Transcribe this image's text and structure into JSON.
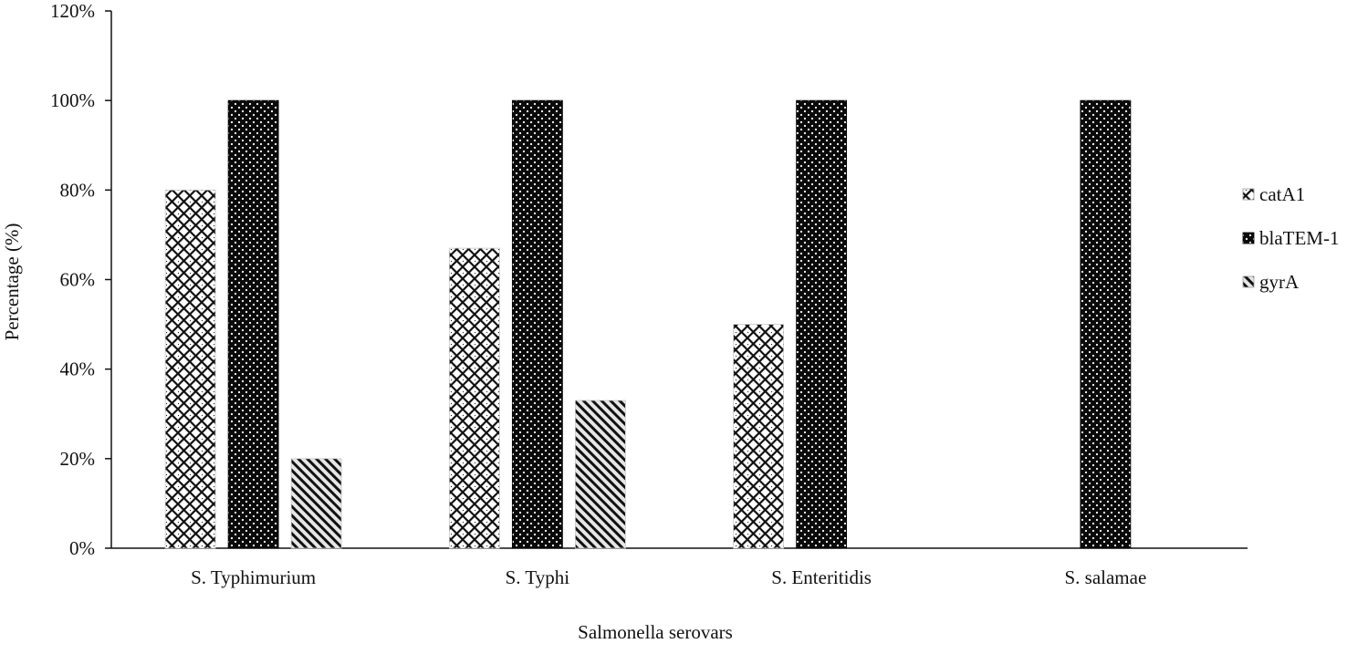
{
  "chart_data": {
    "type": "bar",
    "title": "",
    "xlabel": "Salmonella serovars",
    "ylabel": "Percentage (%)",
    "ylim": [
      0,
      120
    ],
    "y_ticks": [
      0,
      20,
      40,
      60,
      80,
      100,
      120
    ],
    "y_tick_labels": [
      "0%",
      "20%",
      "40%",
      "60%",
      "80%",
      "100%",
      "120%"
    ],
    "grid": false,
    "legend_position": "right",
    "categories": [
      "S. Typhimurium",
      "S. Typhi",
      "S. Enteritidis",
      "S. salamae"
    ],
    "series": [
      {
        "name": "catA1",
        "pattern": "crosshatch-dotted",
        "values": [
          80,
          67,
          50,
          0
        ]
      },
      {
        "name": "blaTEM-1",
        "pattern": "dark-dotted",
        "values": [
          100,
          100,
          100,
          100
        ]
      },
      {
        "name": "gyrA",
        "pattern": "diagonal-stripes",
        "values": [
          20,
          33,
          0,
          0
        ]
      }
    ]
  }
}
